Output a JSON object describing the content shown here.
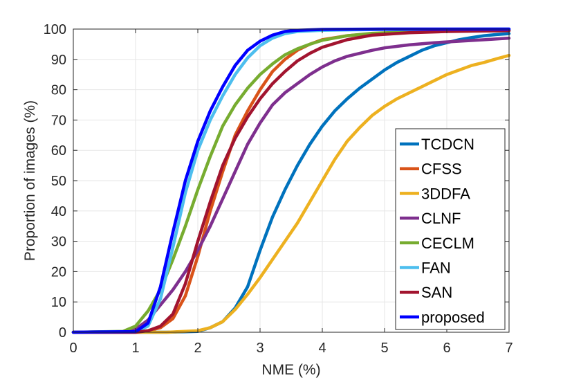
{
  "chart_data": {
    "type": "line",
    "title": "",
    "xlabel": "NME (%)",
    "ylabel": "Proportion of images (%)",
    "xlim": [
      0,
      7
    ],
    "ylim": [
      0,
      100
    ],
    "x_ticks": [
      0,
      1,
      2,
      3,
      4,
      5,
      6,
      7
    ],
    "y_ticks": [
      0,
      10,
      20,
      30,
      40,
      50,
      60,
      70,
      80,
      90,
      100
    ],
    "grid": true,
    "legend_position": "bottom-right",
    "series": [
      {
        "name": "TCDCN",
        "color": "#0072BD",
        "points": [
          [
            0,
            0
          ],
          [
            1,
            0
          ],
          [
            1.5,
            0
          ],
          [
            2,
            0.3
          ],
          [
            2.2,
            1.5
          ],
          [
            2.4,
            3.5
          ],
          [
            2.6,
            8
          ],
          [
            2.8,
            15
          ],
          [
            3,
            27
          ],
          [
            3.2,
            38
          ],
          [
            3.4,
            47
          ],
          [
            3.6,
            55
          ],
          [
            3.8,
            62
          ],
          [
            4,
            68
          ],
          [
            4.2,
            73
          ],
          [
            4.4,
            77
          ],
          [
            4.6,
            80.5
          ],
          [
            4.8,
            83.5
          ],
          [
            5,
            86.5
          ],
          [
            5.2,
            89
          ],
          [
            5.4,
            91
          ],
          [
            5.6,
            93
          ],
          [
            5.8,
            94.5
          ],
          [
            6,
            95.5
          ],
          [
            6.2,
            96.5
          ],
          [
            6.4,
            97.2
          ],
          [
            6.6,
            97.8
          ],
          [
            6.8,
            98.2
          ],
          [
            7,
            98.5
          ]
        ]
      },
      {
        "name": "CFSS",
        "color": "#D95319",
        "points": [
          [
            0,
            0
          ],
          [
            1,
            0
          ],
          [
            1.2,
            0.5
          ],
          [
            1.4,
            1.5
          ],
          [
            1.6,
            4.5
          ],
          [
            1.8,
            12
          ],
          [
            2,
            25
          ],
          [
            2.2,
            40
          ],
          [
            2.4,
            53
          ],
          [
            2.6,
            65
          ],
          [
            2.8,
            73
          ],
          [
            3,
            80
          ],
          [
            3.2,
            86
          ],
          [
            3.4,
            90
          ],
          [
            3.6,
            93
          ],
          [
            3.8,
            95
          ],
          [
            4,
            96.5
          ],
          [
            4.4,
            97.8
          ],
          [
            4.8,
            98.5
          ],
          [
            5.4,
            99
          ],
          [
            6,
            99.3
          ],
          [
            7,
            99.5
          ]
        ]
      },
      {
        "name": "3DDFA",
        "color": "#EDB120",
        "points": [
          [
            0,
            0
          ],
          [
            1,
            0
          ],
          [
            1.5,
            0
          ],
          [
            2,
            0.5
          ],
          [
            2.2,
            1.5
          ],
          [
            2.4,
            3.5
          ],
          [
            2.6,
            7.5
          ],
          [
            2.8,
            12.5
          ],
          [
            3,
            18
          ],
          [
            3.2,
            24
          ],
          [
            3.4,
            30
          ],
          [
            3.6,
            36
          ],
          [
            3.8,
            43
          ],
          [
            4,
            50
          ],
          [
            4.2,
            57
          ],
          [
            4.4,
            63
          ],
          [
            4.6,
            67.5
          ],
          [
            4.8,
            71.5
          ],
          [
            5,
            74.5
          ],
          [
            5.2,
            77
          ],
          [
            5.4,
            79
          ],
          [
            5.6,
            81
          ],
          [
            5.8,
            83
          ],
          [
            6,
            85
          ],
          [
            6.2,
            86.5
          ],
          [
            6.4,
            88
          ],
          [
            6.6,
            89
          ],
          [
            6.8,
            90.2
          ],
          [
            7,
            91.3
          ]
        ]
      },
      {
        "name": "CLNF",
        "color": "#7E2F8E",
        "points": [
          [
            0,
            0
          ],
          [
            0.8,
            0.2
          ],
          [
            1.0,
            1
          ],
          [
            1.2,
            4
          ],
          [
            1.4,
            9
          ],
          [
            1.6,
            14
          ],
          [
            1.8,
            20
          ],
          [
            2,
            27
          ],
          [
            2.2,
            35
          ],
          [
            2.4,
            44
          ],
          [
            2.6,
            53
          ],
          [
            2.8,
            62
          ],
          [
            3,
            69
          ],
          [
            3.2,
            75
          ],
          [
            3.4,
            79
          ],
          [
            3.6,
            82
          ],
          [
            3.8,
            85
          ],
          [
            4,
            87.5
          ],
          [
            4.2,
            89.5
          ],
          [
            4.4,
            91
          ],
          [
            4.6,
            92
          ],
          [
            4.8,
            93
          ],
          [
            5,
            93.8
          ],
          [
            5.4,
            94.8
          ],
          [
            5.8,
            95.5
          ],
          [
            6.2,
            96
          ],
          [
            6.6,
            96.5
          ],
          [
            7,
            97
          ]
        ]
      },
      {
        "name": "CECLM",
        "color": "#77AC30",
        "points": [
          [
            0,
            0
          ],
          [
            0.8,
            0.3
          ],
          [
            1.0,
            2
          ],
          [
            1.2,
            7
          ],
          [
            1.4,
            14
          ],
          [
            1.6,
            24
          ],
          [
            1.8,
            35
          ],
          [
            2,
            47
          ],
          [
            2.2,
            58
          ],
          [
            2.4,
            68
          ],
          [
            2.6,
            75
          ],
          [
            2.8,
            80.5
          ],
          [
            3,
            85
          ],
          [
            3.2,
            88.5
          ],
          [
            3.4,
            91.5
          ],
          [
            3.6,
            93.5
          ],
          [
            3.8,
            95
          ],
          [
            4,
            96.3
          ],
          [
            4.4,
            97.8
          ],
          [
            4.8,
            98.6
          ],
          [
            5.4,
            99.1
          ],
          [
            6,
            99.4
          ],
          [
            7,
            99.6
          ]
        ]
      },
      {
        "name": "FAN",
        "color": "#4DBEEE",
        "points": [
          [
            0,
            0
          ],
          [
            1,
            0.2
          ],
          [
            1.2,
            2
          ],
          [
            1.4,
            11
          ],
          [
            1.6,
            28
          ],
          [
            1.8,
            46
          ],
          [
            2,
            60
          ],
          [
            2.2,
            70
          ],
          [
            2.4,
            78
          ],
          [
            2.6,
            85
          ],
          [
            2.8,
            90.5
          ],
          [
            3,
            94.5
          ],
          [
            3.2,
            97
          ],
          [
            3.4,
            98.5
          ],
          [
            3.6,
            99.2
          ],
          [
            4,
            99.6
          ],
          [
            5,
            99.9
          ],
          [
            7,
            100
          ]
        ]
      },
      {
        "name": "SAN",
        "color": "#A2142F",
        "points": [
          [
            0,
            0
          ],
          [
            1,
            0
          ],
          [
            1.2,
            0.5
          ],
          [
            1.4,
            2
          ],
          [
            1.6,
            6
          ],
          [
            1.8,
            16
          ],
          [
            2,
            30
          ],
          [
            2.2,
            43
          ],
          [
            2.4,
            55
          ],
          [
            2.6,
            64
          ],
          [
            2.8,
            71
          ],
          [
            3,
            77
          ],
          [
            3.2,
            82
          ],
          [
            3.4,
            86
          ],
          [
            3.6,
            89.5
          ],
          [
            3.8,
            92
          ],
          [
            4,
            94
          ],
          [
            4.4,
            96.5
          ],
          [
            4.8,
            98
          ],
          [
            5.4,
            98.8
          ],
          [
            6,
            99.2
          ],
          [
            7,
            99.5
          ]
        ]
      },
      {
        "name": "proposed",
        "color": "#0000FF",
        "points": [
          [
            0,
            0
          ],
          [
            1,
            0.2
          ],
          [
            1.2,
            3
          ],
          [
            1.4,
            15
          ],
          [
            1.6,
            33
          ],
          [
            1.8,
            50
          ],
          [
            2,
            63
          ],
          [
            2.2,
            73
          ],
          [
            2.4,
            81
          ],
          [
            2.6,
            88
          ],
          [
            2.8,
            93
          ],
          [
            3,
            96
          ],
          [
            3.2,
            98
          ],
          [
            3.4,
            99.2
          ],
          [
            3.6,
            99.6
          ],
          [
            4,
            99.9
          ],
          [
            5,
            100
          ],
          [
            7,
            100
          ]
        ]
      }
    ]
  }
}
